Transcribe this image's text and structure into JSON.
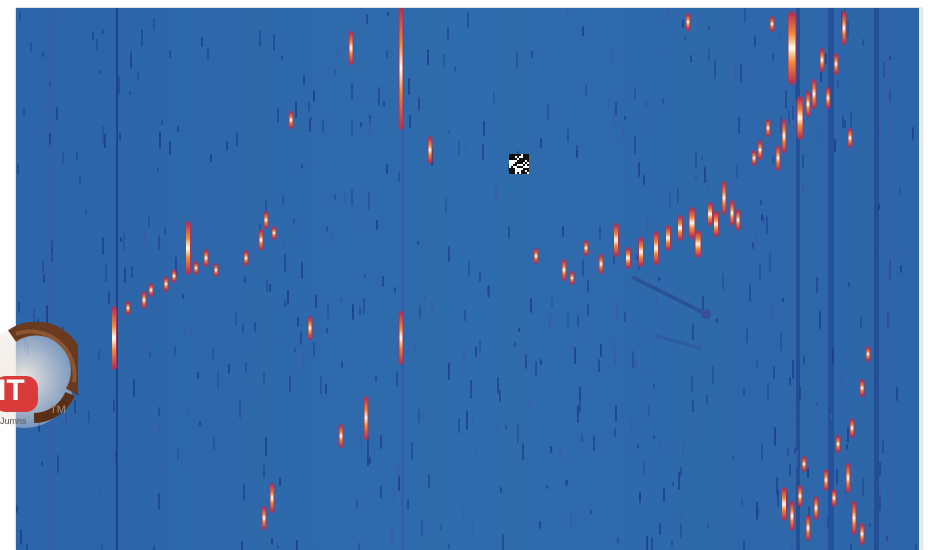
{
  "colors": {
    "background": "#2f6aab",
    "dark_streak": "#1d3f8c",
    "mid_streak": "#3b5aa8",
    "hot_red": "#b8304f",
    "hot_orange": "#f08a3a",
    "hot_yellow": "#ffe79a",
    "hot_white": "#fffbe8"
  },
  "icons": {
    "qr": "qr-code-icon",
    "logo": "brand-logo-icon"
  },
  "logo": {
    "letters": "IT",
    "mark": "TM",
    "small_text": "Jumns"
  }
}
